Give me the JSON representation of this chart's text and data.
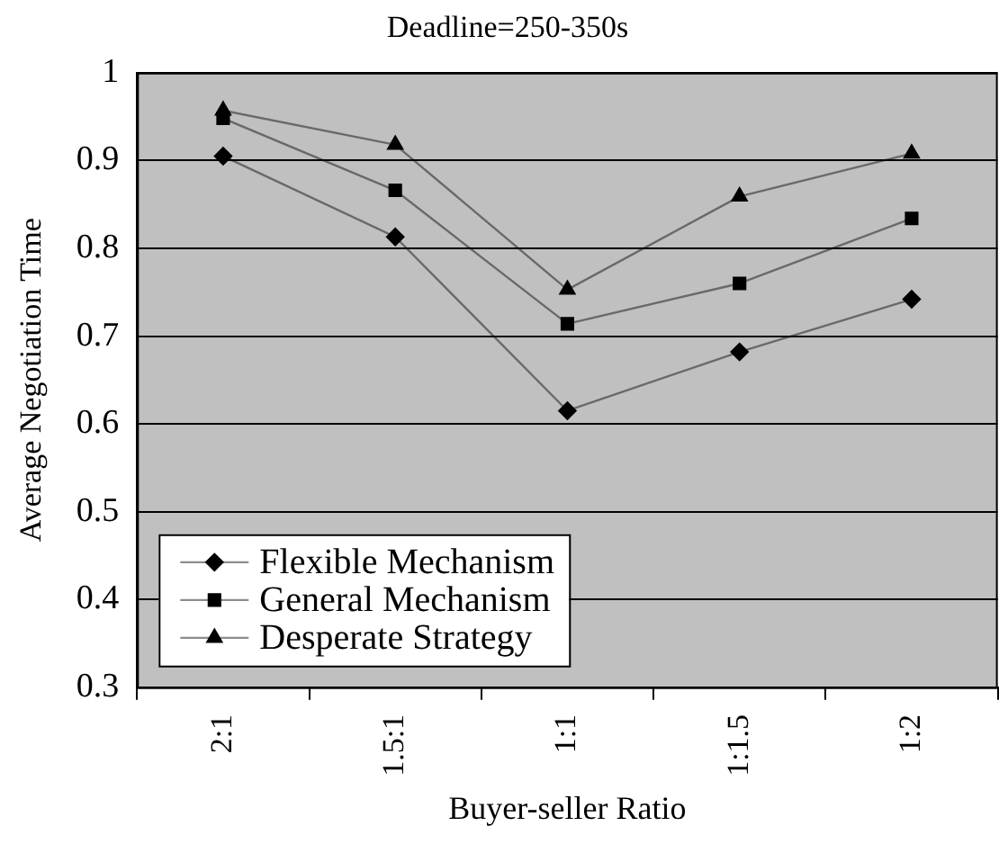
{
  "chart_data": {
    "type": "line",
    "title": "Deadline=250-350s",
    "xlabel": "Buyer-seller Ratio",
    "ylabel": "Average Negotiation Time",
    "categories": [
      "2:1",
      "1.5:1",
      "1:1",
      "1:1.5",
      "1:2"
    ],
    "series": [
      {
        "name": "Flexible Mechanism",
        "color": "#000000",
        "marker": "diamond",
        "values": [
          0.905,
          0.813,
          0.615,
          0.682,
          0.742
        ]
      },
      {
        "name": "General Mechanism",
        "color": "#000000",
        "marker": "square",
        "values": [
          0.948,
          0.866,
          0.714,
          0.76,
          0.834
        ]
      },
      {
        "name": "Desperate Strategy",
        "color": "#000000",
        "marker": "triangle",
        "values": [
          0.957,
          0.918,
          0.753,
          0.859,
          0.908
        ]
      }
    ],
    "ylim": [
      0.3,
      1
    ],
    "yticks": [
      0.3,
      0.4,
      0.5,
      0.6,
      0.7,
      0.8,
      0.9,
      1
    ],
    "grid": "y",
    "legend": "bottom left"
  }
}
